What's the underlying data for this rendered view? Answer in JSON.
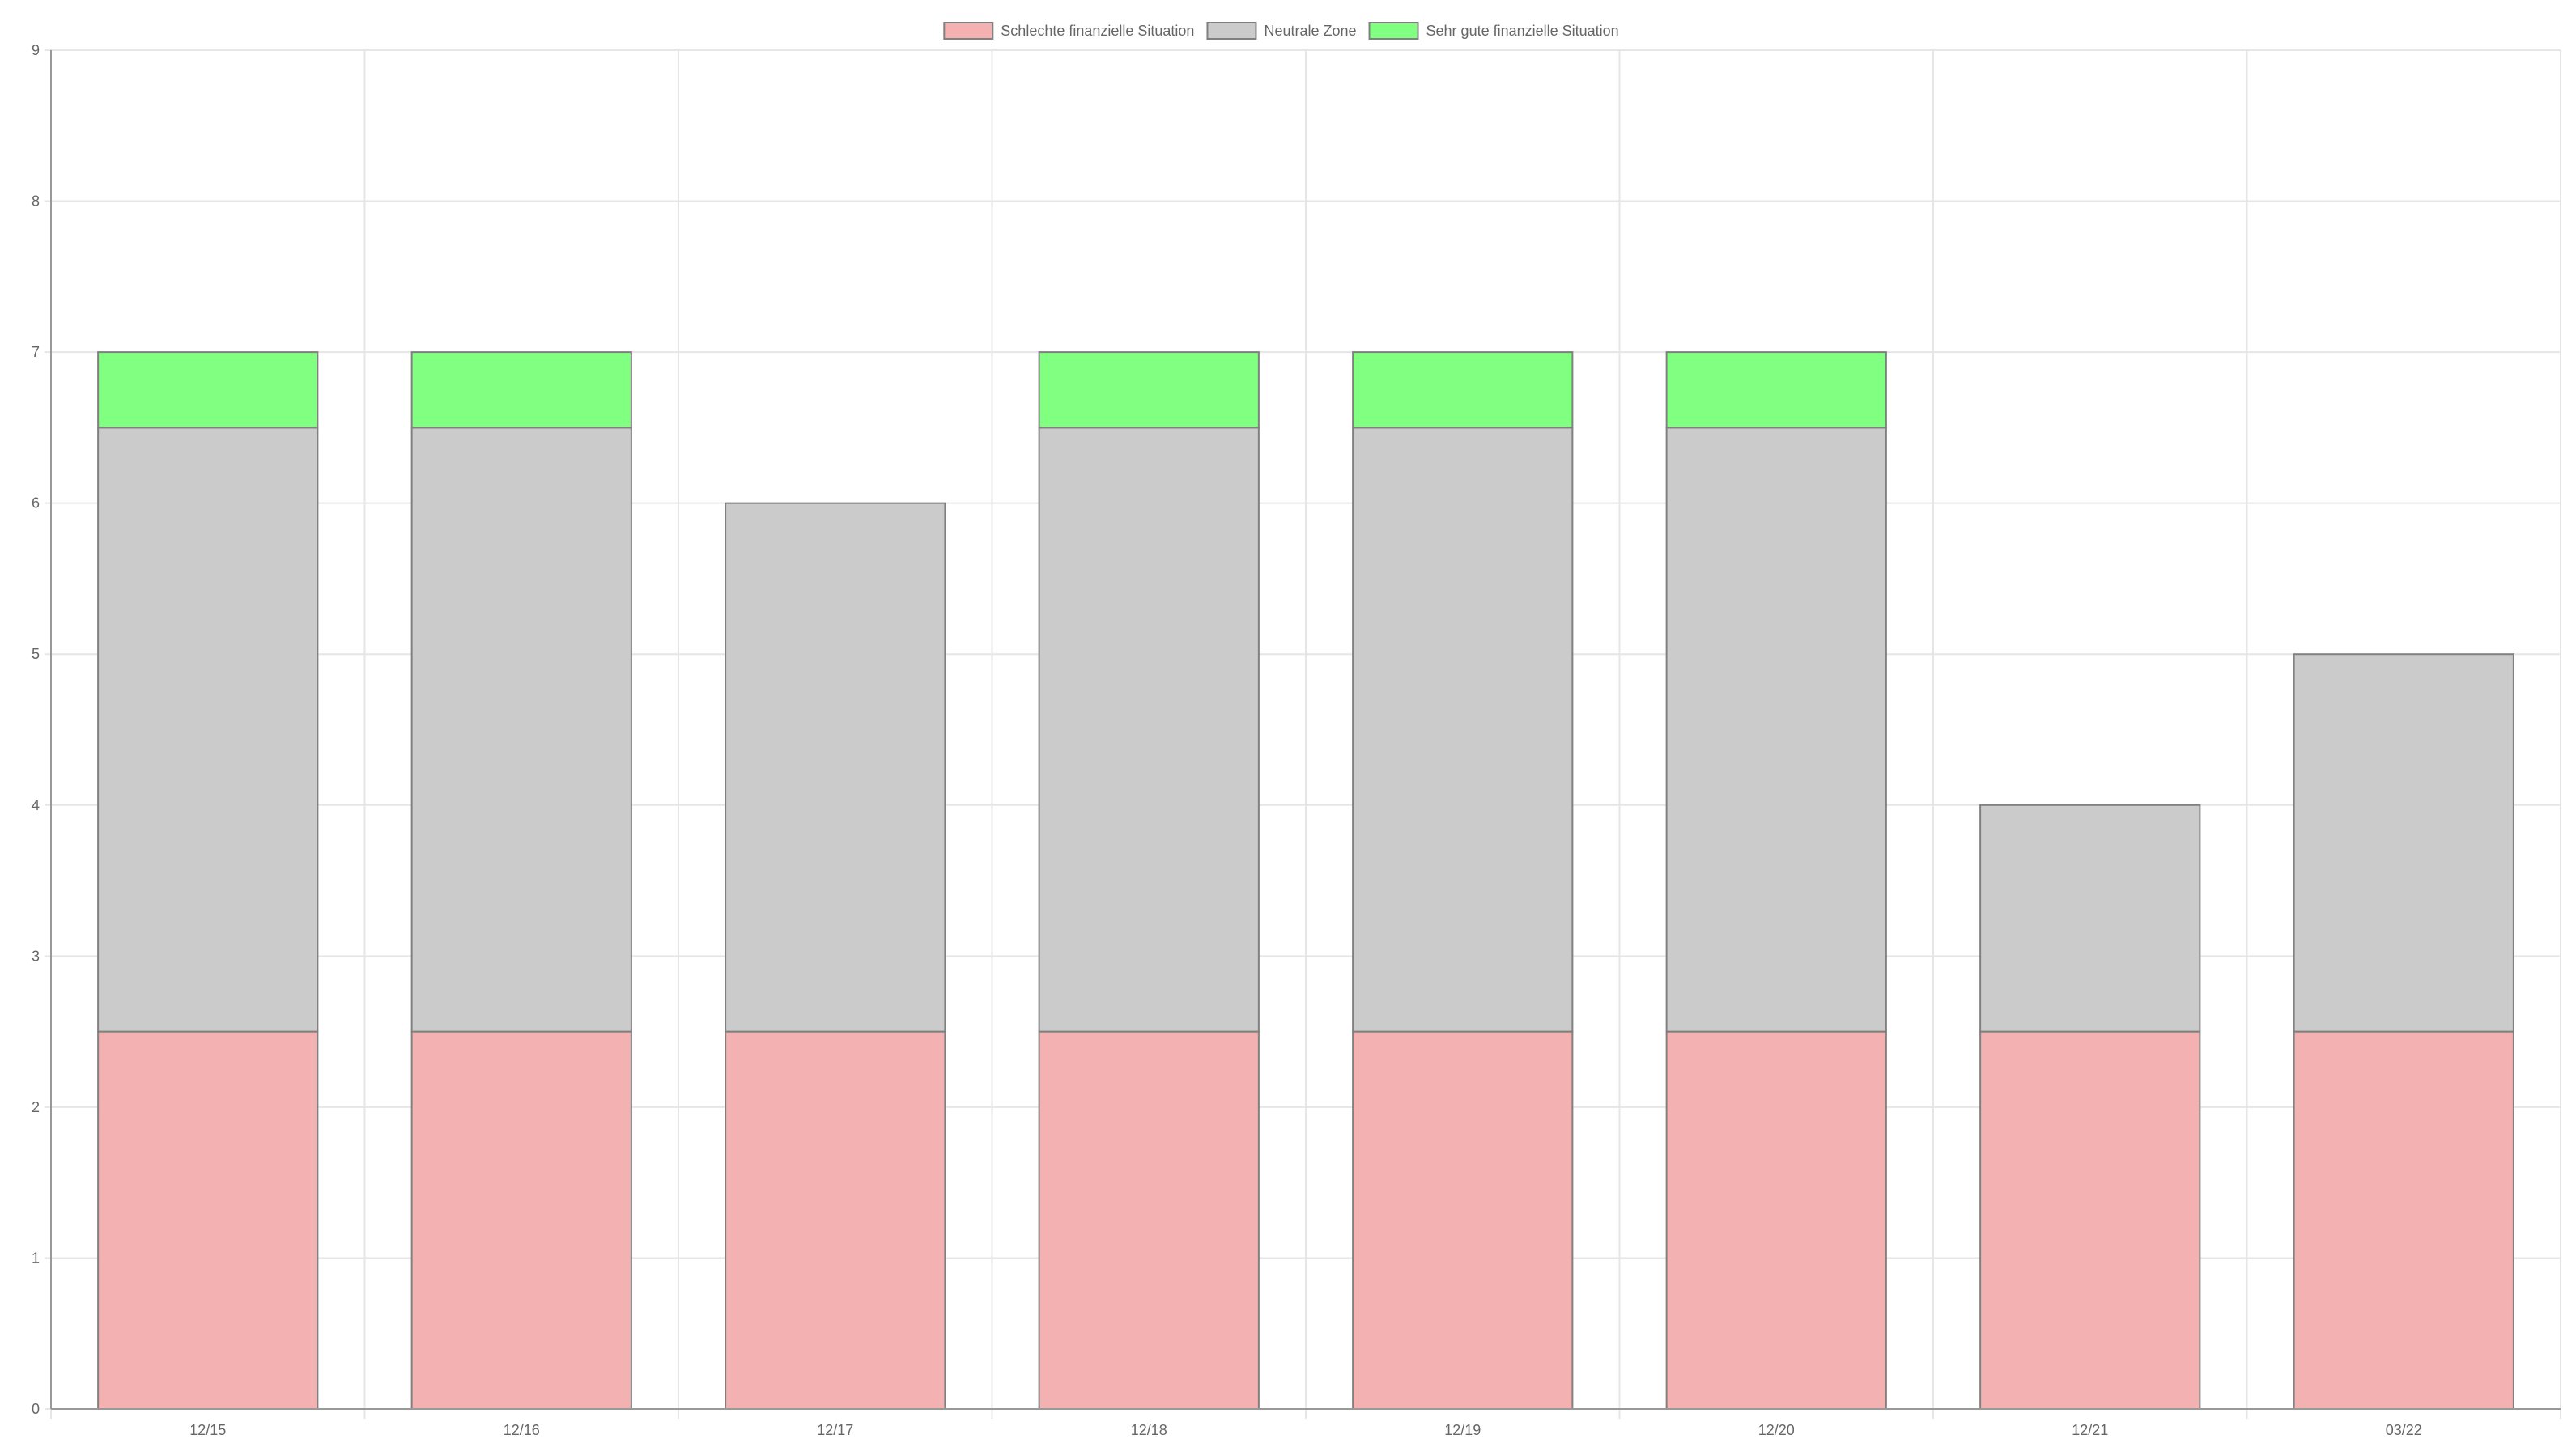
{
  "chart_data": {
    "type": "bar",
    "stacked": true,
    "categories": [
      "12/15",
      "12/16",
      "12/17",
      "12/18",
      "12/19",
      "12/20",
      "12/21",
      "03/22"
    ],
    "series": [
      {
        "name": "Schlechte finanzielle Situation",
        "color": "#f4b1b1",
        "values": [
          2.5,
          2.5,
          2.5,
          2.5,
          2.5,
          2.5,
          2.5,
          2.5
        ]
      },
      {
        "name": "Neutrale Zone",
        "color": "#cbcbcb",
        "values": [
          4,
          4,
          3.5,
          4,
          4,
          4,
          1.5,
          2.5
        ]
      },
      {
        "name": "Sehr gute finanzielle Situation",
        "color": "#80ff80",
        "values": [
          0.5,
          0.5,
          0,
          0.5,
          0.5,
          0.5,
          0,
          0
        ]
      }
    ],
    "ylim": [
      0,
      9
    ],
    "yticks": [
      0,
      1,
      2,
      3,
      4,
      5,
      6,
      7,
      8,
      9
    ],
    "grid": true,
    "legend_position": "top-center",
    "bar_border_color": "#808080",
    "grid_color": "#e6e6e6",
    "axis_color": "#999999"
  }
}
